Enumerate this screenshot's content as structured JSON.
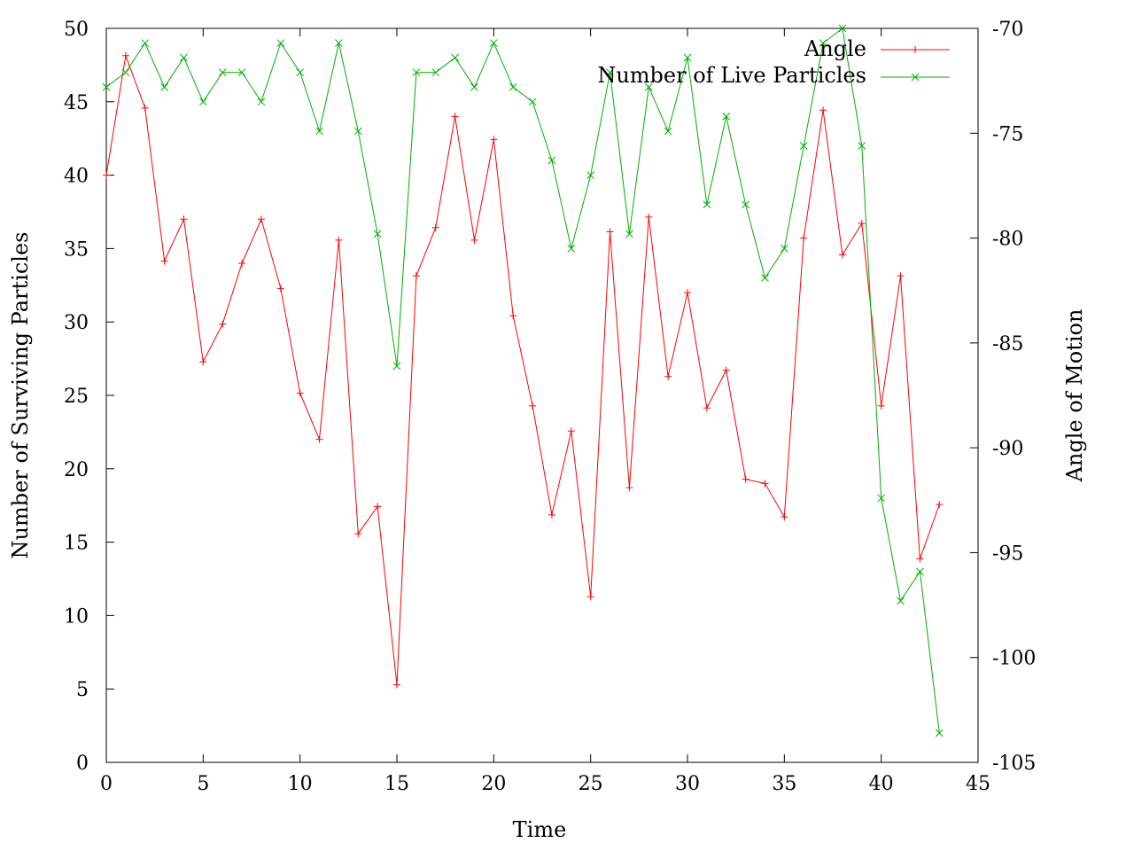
{
  "chart_data": {
    "type": "line",
    "title": "",
    "xlabel": "Time",
    "ylabel": "Number of Surviving Particles",
    "y2label": "Angle of Motion",
    "xlim": [
      0,
      45
    ],
    "ylim": [
      0,
      50
    ],
    "y2lim": [
      -105,
      -70
    ],
    "xticks": [
      "0",
      "5",
      "10",
      "15",
      "20",
      "25",
      "30",
      "35",
      "40",
      "45"
    ],
    "yticks": [
      "0",
      "5",
      "10",
      "15",
      "20",
      "25",
      "30",
      "35",
      "40",
      "45",
      "50"
    ],
    "y2ticks": [
      "-105",
      "-100",
      "-95",
      "-90",
      "-85",
      "-80",
      "-75",
      "-70"
    ],
    "grid": false,
    "legend_position": "top-right",
    "x": [
      0,
      1,
      2,
      3,
      4,
      5,
      6,
      7,
      8,
      9,
      10,
      11,
      12,
      13,
      14,
      15,
      16,
      17,
      18,
      19,
      20,
      21,
      22,
      23,
      24,
      25,
      26,
      27,
      28,
      29,
      30,
      31,
      32,
      33,
      34,
      35,
      36,
      37,
      38,
      39,
      40,
      41,
      42,
      43
    ],
    "series": [
      {
        "name": "Angle",
        "axis": "y2",
        "color": "#ff0000",
        "marker": "plus",
        "values": [
          -77.0,
          -71.3,
          -73.8,
          -81.1,
          -79.1,
          -85.9,
          -84.1,
          -81.2,
          -79.1,
          -82.4,
          -87.4,
          -89.6,
          -80.1,
          -94.1,
          -92.8,
          -101.3,
          -81.8,
          -79.5,
          -74.2,
          -80.1,
          -75.3,
          -83.7,
          -88.0,
          -93.2,
          -89.2,
          -97.1,
          -79.7,
          -91.9,
          -79.0,
          -86.6,
          -82.6,
          -88.1,
          -86.3,
          -91.5,
          -91.7,
          -93.3,
          -80.0,
          -73.9,
          -80.8,
          -79.3,
          -88.0,
          -81.8,
          -95.3,
          -92.7
        ]
      },
      {
        "name": "Number of Live Particles",
        "axis": "y",
        "color": "#00b000",
        "marker": "cross",
        "values": [
          46,
          47,
          49,
          46,
          48,
          45,
          47,
          47,
          45,
          49,
          47,
          43,
          49,
          43,
          36,
          27,
          47,
          47,
          48,
          46,
          49,
          46,
          45,
          41,
          35,
          40,
          47,
          36,
          46,
          43,
          48,
          38,
          44,
          38,
          33,
          35,
          42,
          49,
          50,
          42,
          18,
          11,
          13,
          2
        ]
      }
    ]
  }
}
